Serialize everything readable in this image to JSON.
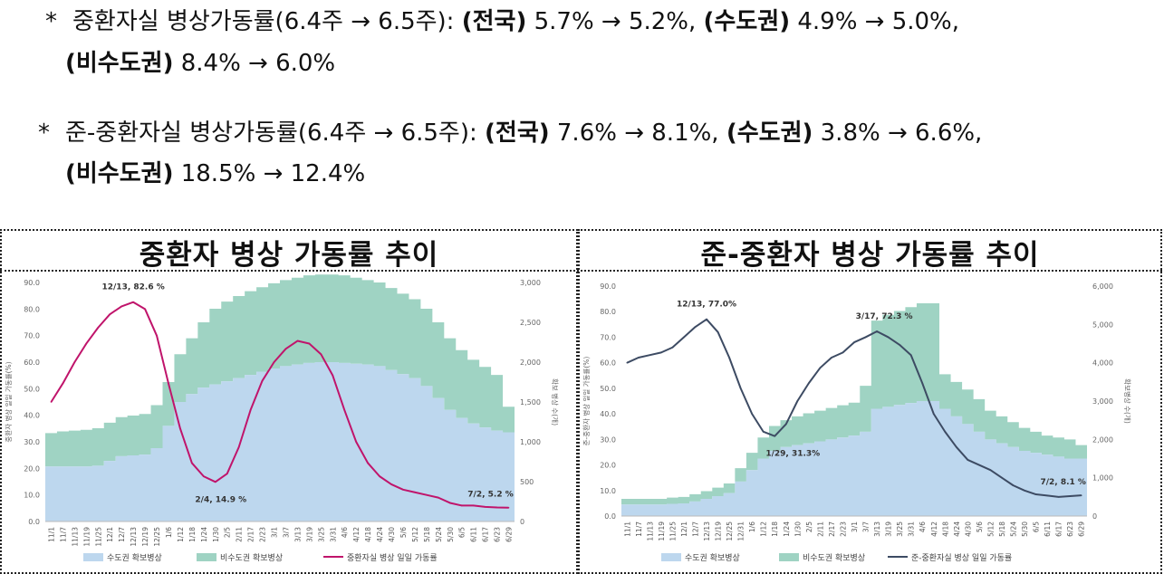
{
  "notes": [
    {
      "bullet": "*",
      "line1_prefix": "중환자실 병상가동률(6.4주 → 6.5주): ",
      "line1_seg1_bold": "(전국)",
      "line1_seg1_val": " 5.7% → 5.2%, ",
      "line1_seg2_bold": "(수도권)",
      "line1_seg2_val": " 4.9% → 5.0%,",
      "line2_bold": "(비수도권)",
      "line2_val": " 8.4% → 6.0%"
    },
    {
      "bullet": "*",
      "line1_prefix": "준-중환자실 병상가동률(6.4주 → 6.5주): ",
      "line1_seg1_bold": "(전국)",
      "line1_seg1_val": " 7.6% → 8.1%, ",
      "line1_seg2_bold": "(수도권)",
      "line1_seg2_val": " 3.8% → 6.6%,",
      "line2_bold": "(비수도권)",
      "line2_val": " 18.5% → 12.4%"
    }
  ],
  "chart_data": [
    {
      "type": "area+line",
      "title": "중환자 병상 가동률 추이",
      "ylabel_left": "중환자 병상 일일 가동률(%)",
      "ylabel_right": "확보 병상 수(개)",
      "ylim_left": [
        0,
        90
      ],
      "ylim_right": [
        0,
        3000
      ],
      "yticks_left": [
        "0.0",
        "10.0",
        "20.0",
        "30.0",
        "40.0",
        "50.0",
        "60.0",
        "70.0",
        "80.0",
        "90.0"
      ],
      "yticks_right": [
        "0",
        "500",
        "1,000",
        "1,500",
        "2,000",
        "2,500",
        "3,000"
      ],
      "ytick_values_left": [
        0,
        10,
        20,
        30,
        40,
        50,
        60,
        70,
        80,
        90
      ],
      "ytick_values_right": [
        0,
        500,
        1000,
        1500,
        2000,
        2500,
        3000
      ],
      "categories": [
        "11/1",
        "11/7",
        "11/13",
        "11/19",
        "11/25",
        "12/1",
        "12/7",
        "12/13",
        "12/19",
        "12/25",
        "1/6",
        "1/12",
        "1/18",
        "1/24",
        "1/30",
        "2/5",
        "2/11",
        "2/17",
        "2/23",
        "3/1",
        "3/7",
        "3/13",
        "3/19",
        "3/25",
        "3/31",
        "4/6",
        "4/12",
        "4/18",
        "4/24",
        "4/30",
        "5/6",
        "5/12",
        "5/18",
        "5/24",
        "5/30",
        "6/5",
        "6/11",
        "6/17",
        "6/23",
        "6/29"
      ],
      "series": [
        {
          "name": "수도권 확보병상",
          "color": "#bdd7ee",
          "values": [
            690,
            690,
            690,
            690,
            700,
            760,
            820,
            830,
            840,
            920,
            1200,
            1500,
            1600,
            1680,
            1720,
            1760,
            1800,
            1840,
            1880,
            1920,
            1950,
            1970,
            1990,
            2000,
            2000,
            1990,
            1980,
            1970,
            1950,
            1900,
            1850,
            1800,
            1700,
            1550,
            1400,
            1300,
            1230,
            1180,
            1140,
            1120
          ]
        },
        {
          "name": "비수도권 확보병상",
          "color": "#9fd3c3",
          "values": [
            420,
            440,
            450,
            460,
            470,
            480,
            490,
            500,
            510,
            540,
            550,
            600,
            700,
            820,
            950,
            1000,
            1030,
            1050,
            1060,
            1070,
            1080,
            1090,
            1100,
            1100,
            1100,
            1100,
            1080,
            1060,
            1050,
            1030,
            1010,
            990,
            970,
            950,
            900,
            850,
            800,
            760,
            700,
            320
          ]
        },
        {
          "name": "중환자실 병상 일일 가동률",
          "color": "#c0146b",
          "values": [
            45,
            52,
            60,
            67,
            73,
            78,
            81,
            82.6,
            80,
            70,
            52,
            35,
            22,
            17,
            14.9,
            18,
            28,
            42,
            53,
            60,
            65,
            68,
            67,
            63,
            55,
            42,
            30,
            22,
            17,
            14,
            12,
            11,
            10,
            9,
            7,
            6,
            6,
            5.5,
            5.3,
            5.2
          ]
        }
      ],
      "annotations": [
        "12/13, 82.6 %",
        "2/4, 14.9 %",
        "7/2, 5.2 %"
      ]
    },
    {
      "type": "area+line",
      "title": "준-중환자 병상 가동률 추이",
      "ylabel_left": "준-중환자 병상 일일 가동률(%)",
      "ylabel_right": "확보병상 수(개)",
      "ylim_left": [
        0,
        90
      ],
      "ylim_right": [
        0,
        6000
      ],
      "yticks_left": [
        "0.0",
        "10.0",
        "20.0",
        "30.0",
        "40.0",
        "50.0",
        "60.0",
        "70.0",
        "80.0",
        "90.0"
      ],
      "yticks_right": [
        "0",
        "1,000",
        "2,000",
        "3,000",
        "4,000",
        "5,000",
        "6,000"
      ],
      "ytick_values_left": [
        0,
        10,
        20,
        30,
        40,
        50,
        60,
        70,
        80,
        90
      ],
      "ytick_values_right": [
        0,
        1000,
        2000,
        3000,
        4000,
        5000,
        6000
      ],
      "categories": [
        "11/1",
        "11/7",
        "11/13",
        "11/19",
        "11/25",
        "12/1",
        "12/7",
        "12/13",
        "12/19",
        "12/25",
        "12/31",
        "1/6",
        "1/12",
        "1/18",
        "1/24",
        "1/30",
        "2/5",
        "2/11",
        "2/17",
        "2/23",
        "3/1",
        "3/7",
        "3/13",
        "3/19",
        "3/25",
        "3/31",
        "4/6",
        "4/12",
        "4/18",
        "4/24",
        "4/30",
        "5/6",
        "5/12",
        "5/18",
        "5/24",
        "5/30",
        "6/5",
        "6/11",
        "6/17",
        "6/23",
        "6/29"
      ],
      "series": [
        {
          "name": "수도권 확보병상",
          "color": "#bdd7ee",
          "values": [
            300,
            300,
            300,
            300,
            320,
            330,
            380,
            450,
            520,
            600,
            900,
            1200,
            1500,
            1700,
            1800,
            1850,
            1900,
            1950,
            2000,
            2050,
            2100,
            2200,
            2800,
            2850,
            2900,
            2950,
            3000,
            3000,
            2800,
            2600,
            2400,
            2200,
            2000,
            1900,
            1800,
            1700,
            1650,
            1600,
            1550,
            1500,
            1500
          ]
        },
        {
          "name": "비수도권 확보병상",
          "color": "#9fd3c3",
          "values": [
            150,
            150,
            150,
            150,
            160,
            170,
            190,
            200,
            220,
            250,
            350,
            450,
            550,
            650,
            700,
            750,
            780,
            800,
            820,
            840,
            860,
            1200,
            2300,
            2400,
            2450,
            2500,
            2550,
            2550,
            900,
            900,
            900,
            850,
            750,
            700,
            650,
            600,
            550,
            500,
            500,
            500,
            350
          ]
        },
        {
          "name": "준-중환자실 병상 일일 가동률",
          "color": "#3d4b63",
          "values": [
            60,
            62,
            63,
            64,
            66,
            70,
            74,
            77,
            72,
            62,
            50,
            40,
            33,
            31.3,
            36,
            45,
            52,
            58,
            62,
            64,
            68,
            70,
            72.3,
            70,
            67,
            63,
            52,
            40,
            33,
            27,
            22,
            20,
            18,
            15,
            12,
            10,
            8.5,
            8,
            7.5,
            7.8,
            8.1
          ]
        }
      ],
      "annotations": [
        "12/13, 77.0%",
        "3/17, 72.3 %",
        "1/29, 31.3%",
        "7/2, 8.1 %"
      ]
    }
  ]
}
